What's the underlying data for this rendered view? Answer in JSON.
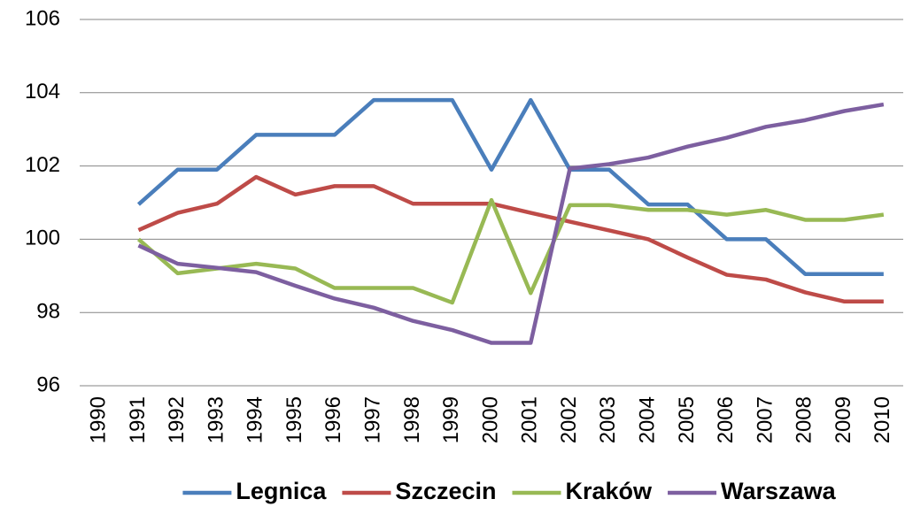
{
  "chart_data": {
    "type": "line",
    "categories": [
      "1990",
      "1991",
      "1992",
      "1993",
      "1994",
      "1995",
      "1996",
      "1997",
      "1998",
      "1999",
      "2000",
      "2001",
      "2002",
      "2003",
      "2004",
      "2005",
      "2006",
      "2007",
      "2008",
      "2009",
      "2010"
    ],
    "ylim": [
      96,
      106
    ],
    "yticks": [
      96,
      98,
      100,
      102,
      104,
      106
    ],
    "grid": true,
    "legend": "bottom",
    "series": [
      {
        "name": "Legnica",
        "color": "#4a7ebb",
        "values": [
          null,
          100.95,
          101.9,
          101.9,
          102.85,
          102.85,
          102.85,
          103.8,
          103.8,
          103.8,
          101.9,
          103.8,
          101.9,
          101.9,
          100.95,
          100.95,
          100,
          100,
          99.05,
          99.05,
          99.05
        ]
      },
      {
        "name": "Szczecin",
        "color": "#be4b48",
        "values": [
          null,
          100.25,
          100.72,
          100.97,
          101.7,
          101.22,
          101.45,
          101.45,
          100.97,
          100.97,
          100.97,
          100.72,
          100.48,
          100.24,
          100,
          99.5,
          99.03,
          98.9,
          98.55,
          98.3,
          98.3
        ]
      },
      {
        "name": "Kraków",
        "color": "#98b954",
        "values": [
          null,
          100,
          99.07,
          99.2,
          99.33,
          99.2,
          98.67,
          98.67,
          98.67,
          98.27,
          101.07,
          98.53,
          100.93,
          100.93,
          100.8,
          100.8,
          100.67,
          100.8,
          100.53,
          100.53,
          100.67
        ]
      },
      {
        "name": "Warszawa",
        "color": "#7d5fa0",
        "values": [
          null,
          99.83,
          99.33,
          99.22,
          99.1,
          98.73,
          98.38,
          98.13,
          97.77,
          97.52,
          97.17,
          97.17,
          101.93,
          102.05,
          102.23,
          102.53,
          102.77,
          103.07,
          103.25,
          103.5,
          103.68
        ]
      }
    ]
  }
}
